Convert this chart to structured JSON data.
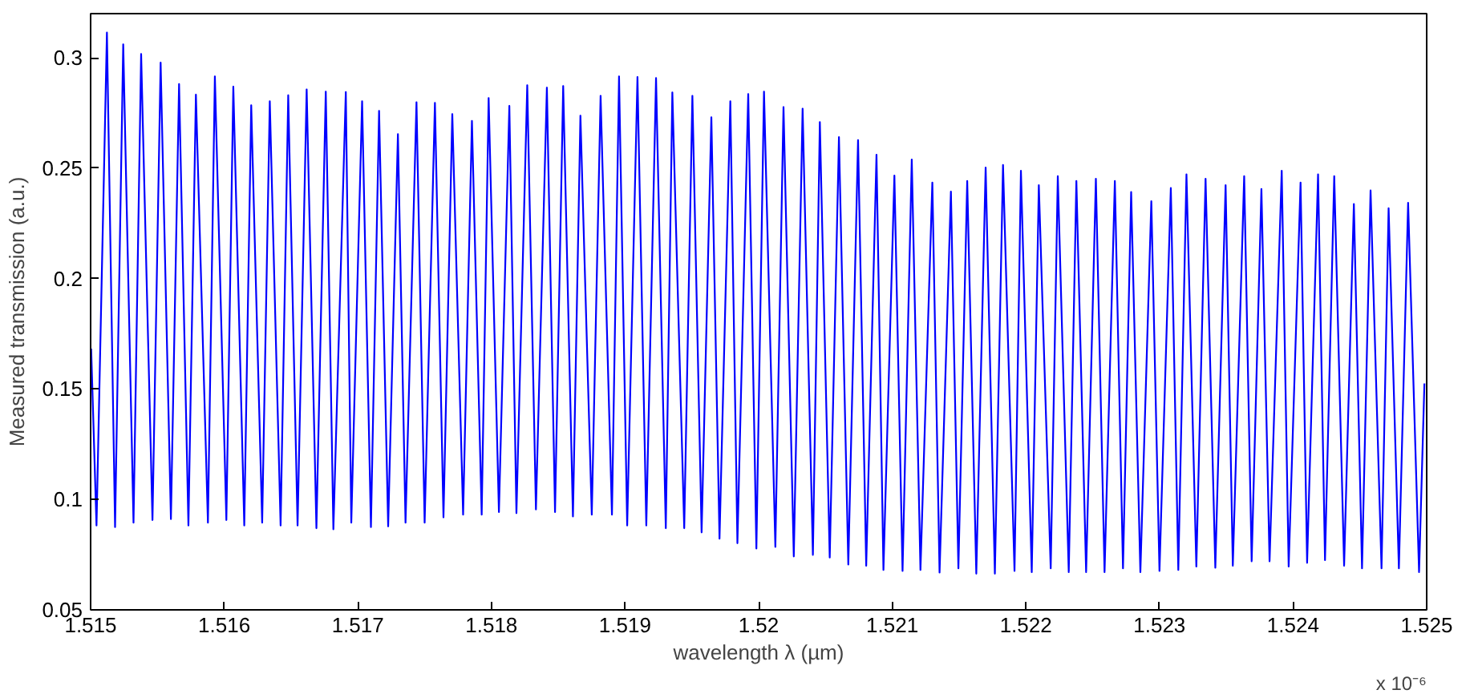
{
  "chart_data": {
    "type": "line",
    "xlabel": "wavelength λ (µm)",
    "ylabel": "Measured transmission (a.u.)",
    "annotations": [
      "x 10⁻⁶"
    ],
    "xlim": [
      1.515,
      1.525
    ],
    "xticks": [
      1.515,
      1.516,
      1.517,
      1.518,
      1.519,
      1.52,
      1.521,
      1.522,
      1.523,
      1.524,
      1.525
    ],
    "ylim": [
      0.05,
      0.32
    ],
    "yticks": [
      0.05,
      0.1,
      0.15,
      0.2,
      0.25,
      0.3
    ],
    "grid": false,
    "marker": "none",
    "line_style": "solid",
    "series": [
      {
        "color": "#0000ff",
        "x": [
          1.515004,
          1.515044,
          1.515122,
          1.515183,
          1.515244,
          1.515321,
          1.515378,
          1.515463,
          1.515524,
          1.515601,
          1.515662,
          1.515732,
          1.515788,
          1.515878,
          1.51593,
          1.516016,
          1.516068,
          1.51615,
          1.516202,
          1.516284,
          1.516341,
          1.516422,
          1.516479,
          1.516549,
          1.516617,
          1.51669,
          1.51676,
          1.516817,
          1.51691,
          1.516951,
          1.517032,
          1.517098,
          1.517159,
          1.517227,
          1.5173,
          1.517357,
          1.517439,
          1.5175,
          1.517577,
          1.517641,
          1.517707,
          1.517788,
          1.517854,
          1.517927,
          1.517979,
          1.518056,
          1.518134,
          1.518187,
          1.518268,
          1.518333,
          1.518415,
          1.518476,
          1.518537,
          1.51861,
          1.518666,
          1.518751,
          1.518817,
          1.518902,
          1.518955,
          1.519016,
          1.519093,
          1.519159,
          1.519232,
          1.519305,
          1.519354,
          1.519443,
          1.519504,
          1.519573,
          1.519646,
          1.519707,
          1.519788,
          1.519841,
          1.519922,
          1.519983,
          1.52004,
          1.520125,
          1.520186,
          1.520263,
          1.520329,
          1.520406,
          1.520458,
          1.520532,
          1.520601,
          1.520671,
          1.520744,
          1.520805,
          1.520882,
          1.520934,
          1.521016,
          1.521077,
          1.521146,
          1.521211,
          1.5213,
          1.521354,
          1.521439,
          1.521495,
          1.521561,
          1.521629,
          1.521699,
          1.521768,
          1.521829,
          1.521915,
          1.521963,
          1.522044,
          1.522097,
          1.522186,
          1.522239,
          1.522321,
          1.522378,
          1.522451,
          1.522524,
          1.522589,
          1.522666,
          1.522727,
          1.522788,
          1.522857,
          1.522939,
          1.523,
          1.523085,
          1.523141,
          1.523202,
          1.523276,
          1.523345,
          1.523418,
          1.523495,
          1.523549,
          1.523634,
          1.52369,
          1.523763,
          1.523824,
          1.523915,
          1.523967,
          1.524056,
          1.524105,
          1.524187,
          1.524239,
          1.524308,
          1.524382,
          1.524455,
          1.524516,
          1.52458,
          1.524662,
          1.524715,
          1.524792,
          1.524861,
          1.524943,
          1.524983
        ],
        "values": [
          0.1683,
          0.0882,
          0.3114,
          0.0875,
          0.3061,
          0.0895,
          0.3017,
          0.0907,
          0.2978,
          0.0911,
          0.2881,
          0.0882,
          0.2833,
          0.0895,
          0.2916,
          0.0907,
          0.2869,
          0.0882,
          0.2785,
          0.0895,
          0.2803,
          0.0882,
          0.283,
          0.0882,
          0.2857,
          0.087,
          0.2847,
          0.0865,
          0.2845,
          0.0895,
          0.2803,
          0.0875,
          0.276,
          0.0878,
          0.2654,
          0.0895,
          0.2799,
          0.0895,
          0.2796,
          0.0919,
          0.2745,
          0.0931,
          0.2714,
          0.0931,
          0.2818,
          0.0943,
          0.2782,
          0.0938,
          0.2876,
          0.0955,
          0.2865,
          0.0943,
          0.2872,
          0.0923,
          0.2738,
          0.0931,
          0.2828,
          0.0931,
          0.2916,
          0.0882,
          0.2913,
          0.0882,
          0.2908,
          0.087,
          0.2843,
          0.087,
          0.2828,
          0.0851,
          0.2731,
          0.0822,
          0.2803,
          0.0802,
          0.2836,
          0.0778,
          0.2847,
          0.0785,
          0.2777,
          0.0742,
          0.277,
          0.0749,
          0.2709,
          0.0737,
          0.2641,
          0.0705,
          0.2627,
          0.07,
          0.2561,
          0.0681,
          0.2467,
          0.0676,
          0.2539,
          0.0681,
          0.2435,
          0.0669,
          0.2394,
          0.0688,
          0.2442,
          0.0664,
          0.2503,
          0.0664,
          0.2515,
          0.0676,
          0.2488,
          0.0671,
          0.2423,
          0.0688,
          0.2464,
          0.0671,
          0.2442,
          0.0671,
          0.2452,
          0.0671,
          0.2442,
          0.0688,
          0.2392,
          0.0671,
          0.235,
          0.0676,
          0.241,
          0.0681,
          0.2472,
          0.0696,
          0.2452,
          0.0691,
          0.2423,
          0.07,
          0.2464,
          0.072,
          0.2406,
          0.072,
          0.2488,
          0.0696,
          0.2435,
          0.0713,
          0.2472,
          0.0725,
          0.2464,
          0.07,
          0.2338,
          0.0688,
          0.2399,
          0.0688,
          0.2319,
          0.0688,
          0.2343,
          0.0671,
          0.1525
        ]
      }
    ]
  }
}
